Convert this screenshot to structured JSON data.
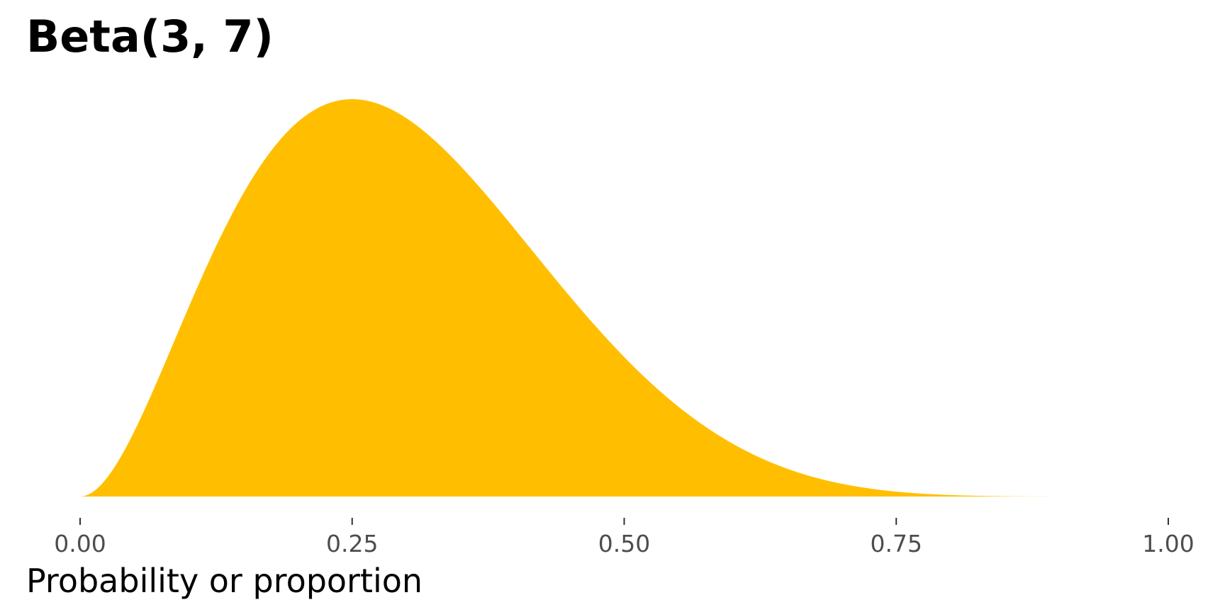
{
  "chart_data": {
    "type": "area",
    "title": "Beta(3, 7)",
    "xlabel": "Probability or proportion",
    "ylabel": "",
    "distribution": {
      "family": "beta",
      "alpha": 3,
      "beta": 7
    },
    "xlim": [
      0,
      1
    ],
    "x_ticks": [
      0,
      0.25,
      0.5,
      0.75,
      1
    ],
    "x_tick_labels": [
      "0.00",
      "0.25",
      "0.50",
      "0.75",
      "1.00"
    ],
    "x": [
      0,
      0.05,
      0.1,
      0.15,
      0.2,
      0.25,
      0.3,
      0.35,
      0.4,
      0.45,
      0.5,
      0.55,
      0.6,
      0.65,
      0.7,
      0.75,
      0.8,
      0.85,
      0.9
    ],
    "y": [
      0,
      0.661,
      1.722,
      2.42,
      2.642,
      2.503,
      2.178,
      1.787,
      1.394,
      1.039,
      0.738,
      0.499,
      0.319,
      0.192,
      0.107,
      0.055,
      0.025,
      0.0096,
      0.0029
    ],
    "fill_color": "#FFBF00",
    "grid": false,
    "legend": "none"
  }
}
